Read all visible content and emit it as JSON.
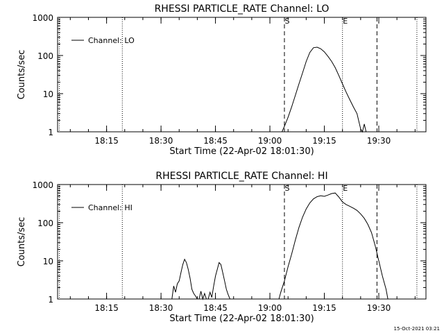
{
  "footer": {
    "timestamp": "15-Oct-2021 03:21"
  },
  "chart_data": [
    {
      "type": "line",
      "title": "RHESSI PARTICLE_RATE Channel: LO",
      "xlabel": "Start Time (22-Apr-02 18:01:30)",
      "ylabel": "Counts/sec",
      "xlim": [
        "18:01:30",
        "19:43:00"
      ],
      "ylim": [
        1,
        1000
      ],
      "yscale": "log",
      "x_ticks": [
        "18:15",
        "18:30",
        "18:45",
        "19:00",
        "19:15",
        "19:30"
      ],
      "y_ticks": [
        "1",
        "10",
        "100",
        "1000"
      ],
      "legend": {
        "position": "top-left",
        "entries": [
          "Channel: LO"
        ]
      },
      "markers": [
        {
          "label": "S",
          "time": "19:04:00",
          "style": "dashed"
        },
        {
          "label": "E",
          "time": "19:20:00",
          "style": "dotted"
        },
        {
          "label": "",
          "time": "19:29:30",
          "style": "dashed"
        },
        {
          "label": "",
          "time": "18:19:20",
          "style": "dotted"
        },
        {
          "label": "",
          "time": "19:40:30",
          "style": "dotted"
        },
        {
          "label": "",
          "time": "18:02:00",
          "style": "dotted"
        }
      ],
      "series": [
        {
          "name": "Channel: LO",
          "points": [
            [
              "19:03:20",
              1
            ],
            [
              "19:04:00",
              1.4
            ],
            [
              "19:05:00",
              2.4
            ],
            [
              "19:06:00",
              4.5
            ],
            [
              "19:07:00",
              9
            ],
            [
              "19:08:00",
              18
            ],
            [
              "19:09:00",
              35
            ],
            [
              "19:10:00",
              70
            ],
            [
              "19:11:00",
              120
            ],
            [
              "19:12:00",
              160
            ],
            [
              "19:13:00",
              165
            ],
            [
              "19:14:00",
              150
            ],
            [
              "19:15:00",
              125
            ],
            [
              "19:16:00",
              95
            ],
            [
              "19:17:00",
              70
            ],
            [
              "19:18:00",
              48
            ],
            [
              "19:19:00",
              30
            ],
            [
              "19:20:00",
              18
            ],
            [
              "19:21:00",
              11
            ],
            [
              "19:22:00",
              7
            ],
            [
              "19:23:00",
              4.5
            ],
            [
              "19:24:00",
              3
            ],
            [
              "19:24:30",
              1.9
            ],
            [
              "19:25:00",
              1.2
            ],
            [
              "19:25:30",
              1
            ],
            [
              "19:26:00",
              1.6
            ],
            [
              "19:26:30",
              1
            ]
          ]
        }
      ]
    },
    {
      "type": "line",
      "title": "RHESSI PARTICLE_RATE Channel: HI",
      "xlabel": "Start Time (22-Apr-02 18:01:30)",
      "ylabel": "Counts/sec",
      "xlim": [
        "18:01:30",
        "19:43:00"
      ],
      "ylim": [
        1,
        1000
      ],
      "yscale": "log",
      "x_ticks": [
        "18:15",
        "18:30",
        "18:45",
        "19:00",
        "19:15",
        "19:30"
      ],
      "y_ticks": [
        "1",
        "10",
        "100",
        "1000"
      ],
      "legend": {
        "position": "top-left",
        "entries": [
          "Channel: HI"
        ]
      },
      "markers": [
        {
          "label": "S",
          "time": "19:04:00",
          "style": "dashed"
        },
        {
          "label": "E",
          "time": "19:20:00",
          "style": "dotted"
        },
        {
          "label": "",
          "time": "19:29:30",
          "style": "dashed"
        },
        {
          "label": "",
          "time": "18:19:20",
          "style": "dotted"
        },
        {
          "label": "",
          "time": "19:40:30",
          "style": "dotted"
        },
        {
          "label": "",
          "time": "18:02:00",
          "style": "dotted"
        }
      ],
      "series": [
        {
          "name": "Channel: HI",
          "segments": [
            [
              [
                "18:33:00",
                1
              ],
              [
                "18:33:30",
                2.2
              ],
              [
                "18:34:00",
                1.5
              ],
              [
                "18:34:30",
                2.5
              ],
              [
                "18:35:00",
                3
              ],
              [
                "18:35:30",
                5
              ],
              [
                "18:36:00",
                8
              ],
              [
                "18:36:30",
                11
              ],
              [
                "18:37:00",
                9
              ],
              [
                "18:37:30",
                6
              ],
              [
                "18:38:00",
                3.5
              ],
              [
                "18:38:30",
                1.8
              ],
              [
                "18:39:00",
                1.4
              ],
              [
                "18:39:30",
                1.2
              ],
              [
                "18:40:00",
                1
              ]
            ],
            [
              [
                "18:40:30",
                1
              ],
              [
                "18:41:00",
                1.6
              ],
              [
                "18:41:30",
                1
              ],
              [
                "18:42:00",
                1.4
              ],
              [
                "18:42:30",
                1
              ]
            ],
            [
              [
                "18:43:00",
                1
              ],
              [
                "18:43:30",
                1.5
              ],
              [
                "18:44:00",
                1.1
              ],
              [
                "18:44:30",
                2.2
              ],
              [
                "18:45:00",
                4
              ],
              [
                "18:45:30",
                6
              ],
              [
                "18:46:00",
                9
              ],
              [
                "18:46:30",
                8
              ],
              [
                "18:47:00",
                5
              ],
              [
                "18:47:30",
                3
              ],
              [
                "18:48:00",
                1.8
              ],
              [
                "18:48:30",
                1.3
              ],
              [
                "18:49:00",
                1
              ]
            ],
            [
              [
                "19:02:30",
                1
              ],
              [
                "19:03:00",
                1.5
              ],
              [
                "19:04:00",
                3
              ],
              [
                "19:05:00",
                7
              ],
              [
                "19:06:00",
                15
              ],
              [
                "19:07:00",
                35
              ],
              [
                "19:08:00",
                75
              ],
              [
                "19:09:00",
                140
              ],
              [
                "19:10:00",
                230
              ],
              [
                "19:11:00",
                330
              ],
              [
                "19:12:00",
                420
              ],
              [
                "19:13:00",
                480
              ],
              [
                "19:14:00",
                510
              ],
              [
                "19:15:00",
                490
              ],
              [
                "19:16:00",
                530
              ],
              [
                "19:17:00",
                580
              ],
              [
                "19:18:00",
                600
              ],
              [
                "19:19:00",
                470
              ],
              [
                "19:20:00",
                350
              ],
              [
                "19:21:00",
                300
              ],
              [
                "19:22:00",
                270
              ],
              [
                "19:23:00",
                240
              ],
              [
                "19:24:00",
                210
              ],
              [
                "19:25:00",
                170
              ],
              [
                "19:26:00",
                130
              ],
              [
                "19:27:00",
                90
              ],
              [
                "19:28:00",
                55
              ],
              [
                "19:29:00",
                25
              ],
              [
                "19:30:00",
                10
              ],
              [
                "19:31:00",
                4
              ],
              [
                "19:32:00",
                1.8
              ],
              [
                "19:32:30",
                1
              ]
            ]
          ]
        }
      ]
    }
  ]
}
